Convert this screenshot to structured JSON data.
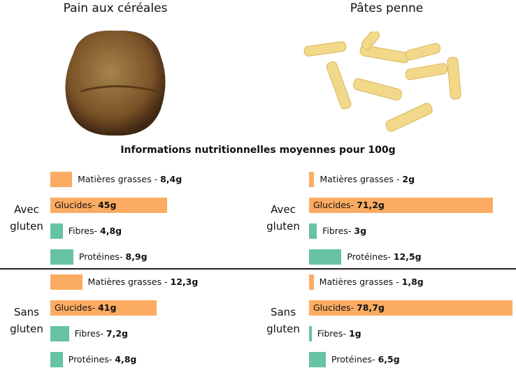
{
  "header": {
    "title": "Informations nutritionnelles moyennes pour 100g"
  },
  "products": [
    {
      "name": "Pain aux céréales",
      "groups": [
        {
          "label": "Avec gluten",
          "items": [
            {
              "name": "Matières grasses -",
              "value": 8.4,
              "value_label": "8,4g",
              "color": "#fbac62"
            },
            {
              "name": "Glucides-",
              "value": 45,
              "value_label": "45g",
              "color": "#fbac62"
            },
            {
              "name": "Fibres-",
              "value": 4.8,
              "value_label": "4,8g",
              "color": "#67c3a3"
            },
            {
              "name": "Protéines-",
              "value": 8.9,
              "value_label": "8,9g",
              "color": "#67c3a3"
            }
          ]
        },
        {
          "label": "Sans gluten",
          "items": [
            {
              "name": "Matières grasses -",
              "value": 12.3,
              "value_label": "12,3g",
              "color": "#fbac62"
            },
            {
              "name": "Glucides-",
              "value": 41,
              "value_label": "41g",
              "color": "#fbac62"
            },
            {
              "name": "Fibres-",
              "value": 7.2,
              "value_label": "7,2g",
              "color": "#67c3a3"
            },
            {
              "name": "Protéines-",
              "value": 4.8,
              "value_label": "4,8g",
              "color": "#67c3a3"
            }
          ]
        }
      ]
    },
    {
      "name": "Pâtes penne",
      "groups": [
        {
          "label": "Avec gluten",
          "items": [
            {
              "name": "Matières grasses -",
              "value": 2,
              "value_label": "2g",
              "color": "#fbac62"
            },
            {
              "name": "Glucides-",
              "value": 71.2,
              "value_label": "71,2g",
              "color": "#fbac62"
            },
            {
              "name": "Fibres-",
              "value": 3,
              "value_label": "3g",
              "color": "#67c3a3"
            },
            {
              "name": "Protéines-",
              "value": 12.5,
              "value_label": "12,5g",
              "color": "#67c3a3"
            }
          ]
        },
        {
          "label": "Sans gluten",
          "items": [
            {
              "name": "Matières grasses -",
              "value": 1.8,
              "value_label": "1,8g",
              "color": "#fbac62"
            },
            {
              "name": "Glucides-",
              "value": 78.7,
              "value_label": "78,7g",
              "color": "#fbac62"
            },
            {
              "name": "Fibres-",
              "value": 1,
              "value_label": "1g",
              "color": "#67c3a3"
            },
            {
              "name": "Protéines-",
              "value": 6.5,
              "value_label": "6,5g",
              "color": "#67c3a3"
            }
          ]
        }
      ]
    }
  ]
}
